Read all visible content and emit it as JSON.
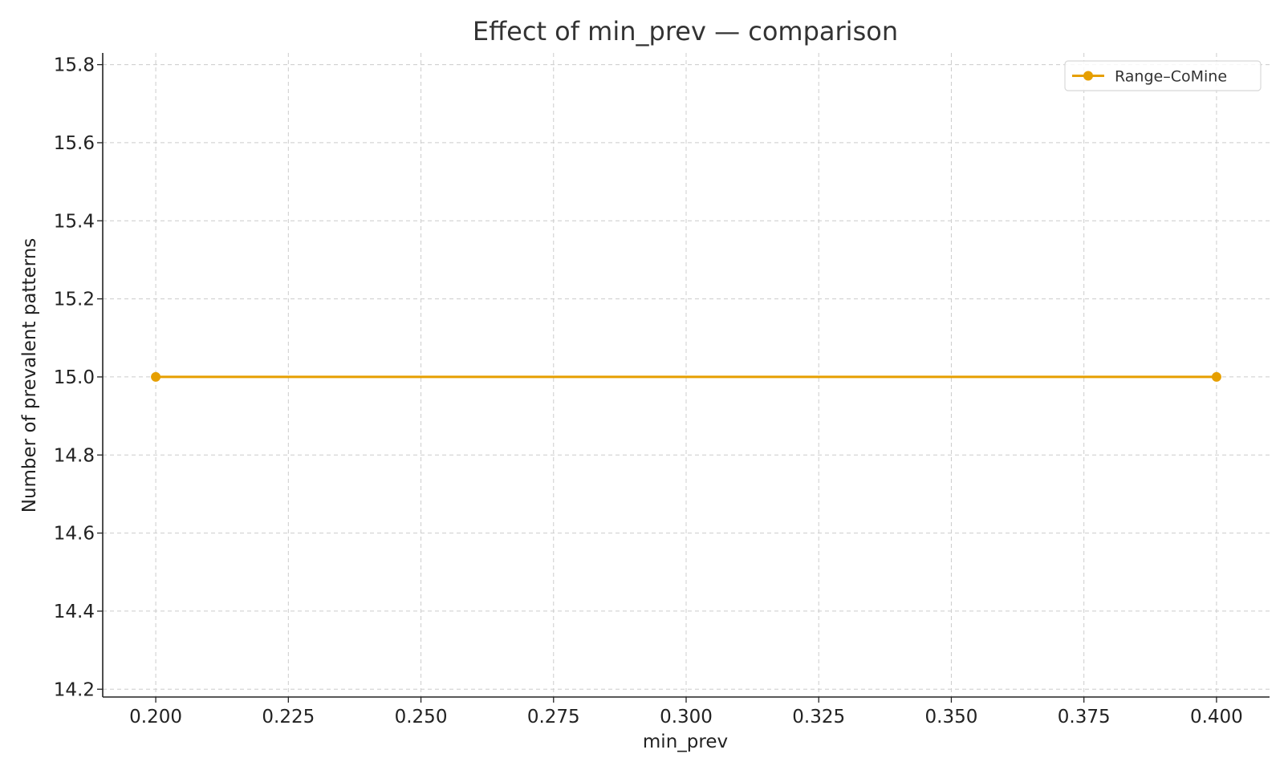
{
  "chart_data": {
    "type": "line",
    "title": "Effect of min_prev — comparison",
    "xlabel": "min_prev",
    "ylabel": "Number of prevalent patterns",
    "xlim": [
      0.19,
      0.41
    ],
    "ylim": [
      14.18,
      15.83
    ],
    "x_ticks": [
      0.2,
      0.225,
      0.25,
      0.275,
      0.3,
      0.325,
      0.35,
      0.375,
      0.4
    ],
    "x_tick_labels": [
      "0.200",
      "0.225",
      "0.250",
      "0.275",
      "0.300",
      "0.325",
      "0.350",
      "0.375",
      "0.400"
    ],
    "y_ticks": [
      14.2,
      14.4,
      14.6,
      14.8,
      15.0,
      15.2,
      15.4,
      15.6,
      15.8
    ],
    "y_tick_labels": [
      "14.2",
      "14.4",
      "14.6",
      "14.8",
      "15.0",
      "15.2",
      "15.4",
      "15.6",
      "15.8"
    ],
    "grid": true,
    "legend_position": "top-right",
    "series": [
      {
        "name": "Range–CoMine",
        "color": "#E69F00",
        "marker": "circle",
        "x": [
          0.2,
          0.4
        ],
        "y": [
          15.0,
          15.0
        ]
      }
    ]
  }
}
